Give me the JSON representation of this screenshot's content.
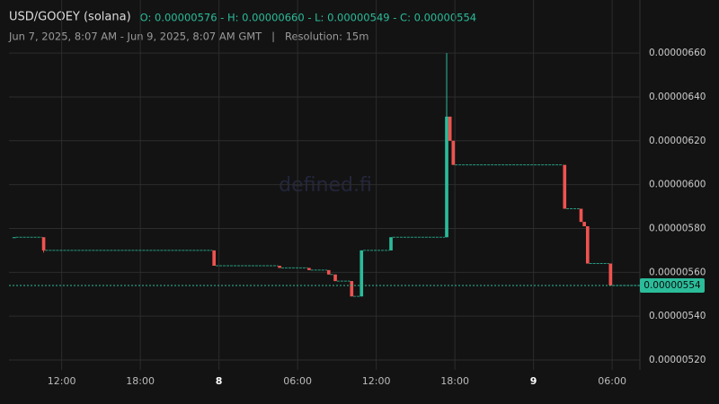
{
  "chart_data": {
    "type": "candlestick",
    "title": "USD/GOOEY (solana)",
    "ohlc_text": "O: 0.00000576 - H: 0.00000660 - L: 0.00000549 - C: 0.00000554",
    "subtitle": "Jun 7, 2025, 8:07 AM - Jun 9, 2025, 8:07 AM GMT   |   Resolution: 15m",
    "watermark": "defined.fi",
    "up_color": "#2bbc9a",
    "down_color": "#ef5350",
    "x": [
      "2025-06-07T08:15",
      "2025-06-07T10:30",
      "2025-06-07T23:30",
      "2025-06-08T04:30",
      "2025-06-08T06:45",
      "2025-06-08T08:15",
      "2025-06-08T08:45",
      "2025-06-08T10:00",
      "2025-06-08T10:45",
      "2025-06-08T13:00",
      "2025-06-08T17:15",
      "2025-06-08T17:30",
      "2025-06-08T17:45",
      "2025-06-09T02:15",
      "2025-06-09T03:30",
      "2025-06-09T03:45",
      "2025-06-09T04:00",
      "2025-06-09T05:45"
    ],
    "open": [
      5.76e-06,
      5.76e-06,
      5.7e-06,
      5.63e-06,
      5.62e-06,
      5.61e-06,
      5.59e-06,
      5.56e-06,
      5.49e-06,
      5.7e-06,
      5.76e-06,
      6.31e-06,
      6.2e-06,
      6.09e-06,
      5.89e-06,
      5.83e-06,
      5.81e-06,
      5.64e-06
    ],
    "high": [
      5.76e-06,
      5.76e-06,
      5.7e-06,
      5.63e-06,
      5.62e-06,
      5.61e-06,
      5.59e-06,
      5.56e-06,
      5.7e-06,
      5.76e-06,
      6.6e-06,
      6.31e-06,
      6.2e-06,
      6.09e-06,
      5.89e-06,
      5.83e-06,
      5.81e-06,
      5.64e-06
    ],
    "low": [
      5.76e-06,
      5.69e-06,
      5.63e-06,
      5.62e-06,
      5.61e-06,
      5.59e-06,
      5.56e-06,
      5.49e-06,
      5.49e-06,
      5.7e-06,
      5.76e-06,
      6.2e-06,
      6.09e-06,
      5.89e-06,
      5.83e-06,
      5.81e-06,
      5.64e-06,
      5.54e-06
    ],
    "close": [
      5.76e-06,
      5.7e-06,
      5.63e-06,
      5.62e-06,
      5.61e-06,
      5.59e-06,
      5.56e-06,
      5.49e-06,
      5.7e-06,
      5.76e-06,
      6.31e-06,
      6.2e-06,
      6.09e-06,
      5.89e-06,
      5.83e-06,
      5.81e-06,
      5.64e-06,
      5.54e-06
    ],
    "xlim": [
      "2025-06-07T08:07",
      "2025-06-09T08:07"
    ],
    "xticks": [
      {
        "value": "2025-06-07T12:00",
        "label": "12:00"
      },
      {
        "value": "2025-06-07T18:00",
        "label": "18:00"
      },
      {
        "value": "2025-06-08T00:00",
        "label": "8"
      },
      {
        "value": "2025-06-08T06:00",
        "label": "06:00"
      },
      {
        "value": "2025-06-08T12:00",
        "label": "12:00"
      },
      {
        "value": "2025-06-08T18:00",
        "label": "18:00"
      },
      {
        "value": "2025-06-09T00:00",
        "label": "9"
      },
      {
        "value": "2025-06-09T06:00",
        "label": "06:00"
      }
    ],
    "ylim": [
      5.155e-06,
      6.842e-06
    ],
    "yticks": [
      {
        "value": 5.2e-06,
        "label": "0.00000520"
      },
      {
        "value": 5.4e-06,
        "label": "0.00000540"
      },
      {
        "value": 5.6e-06,
        "label": "0.00000560"
      },
      {
        "value": 5.8e-06,
        "label": "0.00000580"
      },
      {
        "value": 6e-06,
        "label": "0.00000600"
      },
      {
        "value": 6.2e-06,
        "label": "0.00000620"
      },
      {
        "value": 6.4e-06,
        "label": "0.00000640"
      },
      {
        "value": 6.6e-06,
        "label": "0.00000660"
      }
    ],
    "last_price": {
      "value": 5.54e-06,
      "label": "0.00000554"
    },
    "grid": true
  }
}
